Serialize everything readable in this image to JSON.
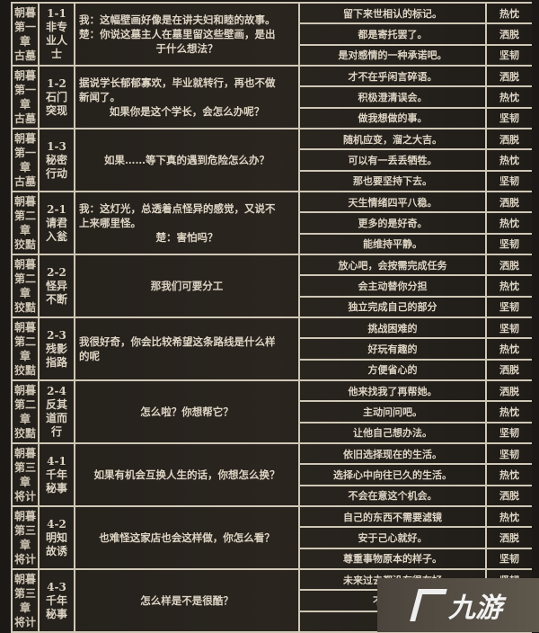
{
  "colors": {
    "background": "#1b1815",
    "text": "#ddd4c4",
    "grid": "#cfc7b6"
  },
  "groups": [
    {
      "chapter": [
        "朝暮",
        "第一",
        "章",
        "古墓"
      ],
      "quest": [
        "1-1",
        "非专",
        "业人",
        "士"
      ],
      "dialogue": [
        "我：这幅壁画好像是在讲夫妇和睦的故事。",
        "楚：你说这墓主人在墓里留这些壁画，是出",
        "于什么想法？"
      ],
      "align": "left",
      "options": [
        {
          "text": "留下来世相认的标记。",
          "attr": "热忱"
        },
        {
          "text": "都是寄托罢了。",
          "attr": "洒脱"
        },
        {
          "text": "是对感情的一种承诺吧。",
          "attr": "坚韧"
        }
      ]
    },
    {
      "chapter": [
        "朝暮",
        "第一",
        "章",
        "古墓"
      ],
      "quest": [
        "1-2",
        "石门",
        "突现"
      ],
      "dialogue": [
        "据说学长郁郁寡欢，毕业就转行，再也不做",
        "新闻了。",
        "如果你是这个学长，会怎么办呢？"
      ],
      "align": "left",
      "options": [
        {
          "text": "才不在乎闲言碎语。",
          "attr": "洒脱"
        },
        {
          "text": "积极澄清误会。",
          "attr": "热忱"
        },
        {
          "text": "做我想做的事。",
          "attr": "坚韧"
        }
      ]
    },
    {
      "chapter": [
        "朝暮",
        "第一",
        "章",
        "古墓"
      ],
      "quest": [
        "1-3",
        "秘密",
        "行动"
      ],
      "dialogue": [
        "如果……等下真的遇到危险怎么办？"
      ],
      "align": "center",
      "options": [
        {
          "text": "随机应变，溜之大吉。",
          "attr": "洒脱"
        },
        {
          "text": "可以有一丢丢牺牲。",
          "attr": "热忱"
        },
        {
          "text": "那也要坚持下去。",
          "attr": "坚韧"
        }
      ]
    },
    {
      "chapter": [
        "朝暮",
        "第二",
        "章",
        "狡黠"
      ],
      "quest": [
        "2-1",
        "请君",
        "入瓮"
      ],
      "dialogue": [
        "我：这灯光，总透着点怪异的感觉，又说不",
        "上来哪里怪。",
        "楚：害怕吗？"
      ],
      "align": "left",
      "options": [
        {
          "text": "天生情绪四平八稳。",
          "attr": "洒脱"
        },
        {
          "text": "更多的是好奇。",
          "attr": "热忱"
        },
        {
          "text": "能维持平静。",
          "attr": "坚韧"
        }
      ]
    },
    {
      "chapter": [
        "朝暮",
        "第二",
        "章",
        "狡黠"
      ],
      "quest": [
        "2-2",
        "怪异",
        "不断"
      ],
      "dialogue": [
        "那我们可要分工"
      ],
      "align": "center",
      "options": [
        {
          "text": "放心吧，会按需完成任务",
          "attr": "洒脱"
        },
        {
          "text": "会主动替你分担",
          "attr": "热忱"
        },
        {
          "text": "独立完成自己的部分",
          "attr": "坚韧"
        }
      ]
    },
    {
      "chapter": [
        "朝暮",
        "第二",
        "章",
        "狡黠"
      ],
      "quest": [
        "2-3",
        "残影",
        "指路"
      ],
      "dialogue": [
        "我很好奇，你会比较希望这条路线是什么样",
        "的呢"
      ],
      "align": "left",
      "options": [
        {
          "text": "挑战困难的",
          "attr": "坚韧"
        },
        {
          "text": "好玩有趣的",
          "attr": "热忱"
        },
        {
          "text": "方便省心的",
          "attr": "洒脱"
        }
      ]
    },
    {
      "chapter": [
        "朝暮",
        "第二",
        "章",
        "狡黠"
      ],
      "quest": [
        "2-4",
        "反其",
        "道而",
        "行"
      ],
      "dialogue": [
        "怎么啦？你想帮它？"
      ],
      "align": "center",
      "options": [
        {
          "text": "他来找我了再帮她。",
          "attr": "洒脱"
        },
        {
          "text": "主动问问吧。",
          "attr": "热忱"
        },
        {
          "text": "让他自己想办法。",
          "attr": "坚韧"
        }
      ]
    },
    {
      "chapter": [
        "朝暮",
        "第三",
        "章",
        "将计"
      ],
      "quest": [
        "4-1",
        "千年",
        "秘事"
      ],
      "dialogue": [
        "如果有机会互换人生的话，你想怎么换？"
      ],
      "align": "center",
      "options": [
        {
          "text": "依旧选择现在的生活。",
          "attr": "坚韧"
        },
        {
          "text": "选择心中向往已久的生活。",
          "attr": "热忱"
        },
        {
          "text": "不会在意这个机会。",
          "attr": "洒脱"
        }
      ]
    },
    {
      "chapter": [
        "朝暮",
        "第三",
        "章",
        "将计"
      ],
      "quest": [
        "4-2",
        "明知",
        "故诱"
      ],
      "dialogue": [
        "也难怪这家店也会这样做，你怎么看？"
      ],
      "align": "center",
      "options": [
        {
          "text": "自己的东西不需要滤镜",
          "attr": "热忱"
        },
        {
          "text": "安于己心就好。",
          "attr": "洒脱"
        },
        {
          "text": "尊重事物原本的样子。",
          "attr": "坚韧"
        }
      ]
    },
    {
      "chapter": [
        "朝暮",
        "第三",
        "章",
        "将计"
      ],
      "quest": [
        "4-3",
        "千年",
        "秘事"
      ],
      "dialogue": [
        "怎么样是不是很酷？"
      ],
      "align": "center",
      "options": [
        {
          "text": "未来过去都没有很在好",
          "attr": "坚韧"
        },
        {
          "text": "不会在意",
          "attr": ""
        },
        {
          "text": "有感觉",
          "attr": ""
        }
      ]
    }
  ],
  "watermark": {
    "logo_text": "九游",
    "icon": "jiuyou-logo-icon"
  }
}
